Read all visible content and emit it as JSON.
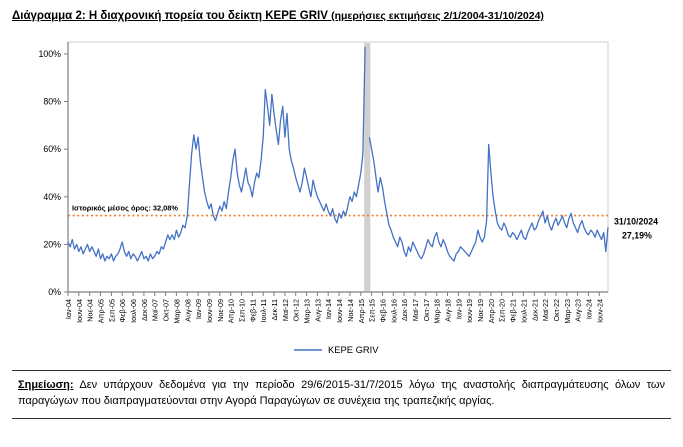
{
  "title": {
    "main": "Διάγραμμα 2: Η διαχρονική πορεία του δείκτη KEPE GRIV",
    "paren": "(ημερήσιες εκτιμήσεις 2/1/2004-31/10/2024)"
  },
  "note": {
    "label": "Σημείωση:",
    "text": "Δεν υπάρχουν δεδομένα για την περίοδο 29/6/2015-31/7/2015 λόγω της αναστολής διαπραγμάτευσης όλων των παραγώγων που διαπραγματεύονται στην Αγορά Παραγώγων σε συνέχεια της τραπεζικής αργίας."
  },
  "chart_data": {
    "type": "line",
    "title": "Η διαχρονική πορεία του δείκτη KEPE GRIV (ημερήσιες εκτιμήσεις 2/1/2004-31/10/2024)",
    "ylim": [
      0,
      105
    ],
    "y_ticks": [
      0,
      20,
      40,
      60,
      80,
      100
    ],
    "y_tick_suffix": "%",
    "grid": false,
    "legend_position": "bottom",
    "x_start": "Ιαν-04",
    "x_tick_labels": [
      "Ιαν-04",
      "Ιουν-04",
      "Νοε-04",
      "Απρ-05",
      "Σεπ-05",
      "Φεβ-06",
      "Ιουλ-06",
      "Δεκ-06",
      "Μαϊ-07",
      "Οκτ-07",
      "Μαρ-08",
      "Αυγ-08",
      "Ιαν-09",
      "Ιουν-09",
      "Νοε-09",
      "Απρ-10",
      "Σεπ-10",
      "Φεβ-11",
      "Ιουλ-11",
      "Δεκ-11",
      "Μαϊ-12",
      "Οκτ-12",
      "Μαρ-13",
      "Αυγ-13",
      "Ιαν-14",
      "Ιουν-14",
      "Νοε-14",
      "Απρ-15",
      "Σεπ-15",
      "Φεβ-16",
      "Ιουλ-16",
      "Δεκ-16",
      "Μαϊ-17",
      "Οκτ-17",
      "Μαρ-18",
      "Αυγ-18",
      "Ιαν-19",
      "Ιουν-19",
      "Νοε-19",
      "Απρ-20",
      "Σεπ-20",
      "Φεβ-21",
      "Ιουλ-21",
      "Δεκ-21",
      "Μαϊ-22",
      "Οκτ-22",
      "Μαρ-23",
      "Αυγ-23",
      "Ιαν-24",
      "Ιουν-24"
    ],
    "x_ticks_every_n_months": 5,
    "series": [
      {
        "name": "KEPE GRIV",
        "color": "#4472C4",
        "frequency": "monthly (estimated from daily line)",
        "values": [
          21,
          19,
          22,
          18,
          20,
          17,
          19,
          16,
          18,
          20,
          17,
          19,
          17,
          15,
          18,
          14,
          16,
          13,
          15,
          14,
          16,
          13,
          15,
          16,
          18,
          21,
          17,
          15,
          17,
          14,
          16,
          15,
          13,
          15,
          17,
          14,
          15,
          13,
          16,
          14,
          15,
          17,
          16,
          19,
          18,
          21,
          24,
          22,
          24,
          22,
          26,
          23,
          25,
          28,
          27,
          32,
          45,
          58,
          66,
          60,
          65,
          55,
          48,
          42,
          38,
          35,
          37,
          32,
          30,
          33,
          36,
          34,
          38,
          35,
          42,
          48,
          55,
          60,
          50,
          45,
          42,
          47,
          52,
          46,
          44,
          40,
          46,
          50,
          48,
          55,
          65,
          85,
          78,
          70,
          83,
          75,
          68,
          62,
          72,
          78,
          65,
          75,
          60,
          55,
          52,
          48,
          45,
          42,
          46,
          52,
          48,
          44,
          40,
          47,
          43,
          40,
          38,
          36,
          34,
          37,
          34,
          32,
          35,
          31,
          29,
          33,
          31,
          34,
          32,
          36,
          40,
          38,
          42,
          40,
          45,
          50,
          58,
          103,
          null,
          65,
          60,
          55,
          48,
          42,
          48,
          44,
          38,
          33,
          28,
          26,
          23,
          21,
          19,
          23,
          21,
          17,
          15,
          19,
          17,
          21,
          19,
          17,
          15,
          14,
          16,
          19,
          22,
          20,
          19,
          23,
          25,
          21,
          19,
          22,
          20,
          17,
          15,
          14,
          13,
          16,
          17,
          19,
          18,
          17,
          16,
          15,
          17,
          19,
          21,
          26,
          23,
          21,
          23,
          30,
          62,
          50,
          40,
          34,
          29,
          27,
          26,
          29,
          27,
          24,
          23,
          25,
          24,
          22,
          24,
          26,
          23,
          22,
          25,
          27,
          29,
          26,
          27,
          30,
          32,
          34,
          29,
          32,
          28,
          26,
          29,
          31,
          28,
          30,
          32,
          29,
          27,
          31,
          33,
          29,
          27,
          25,
          28,
          30,
          27,
          25,
          24,
          26,
          25,
          23,
          26,
          24,
          22,
          25,
          17,
          27.19
        ]
      }
    ],
    "no_data_band": {
      "label": "29/6/2015-31/7/2015",
      "color": "#c8c8c8"
    },
    "average_line": {
      "value": 32.08,
      "label": "Ιστορικός μέσος όρος: 32,08%",
      "color": "#ED7D31",
      "style": "dotted"
    },
    "end_annotation": {
      "date": "31/10/2024",
      "value_label": "27,19%",
      "value": 27.19
    },
    "legend": {
      "label": "KEPE GRIV"
    }
  }
}
